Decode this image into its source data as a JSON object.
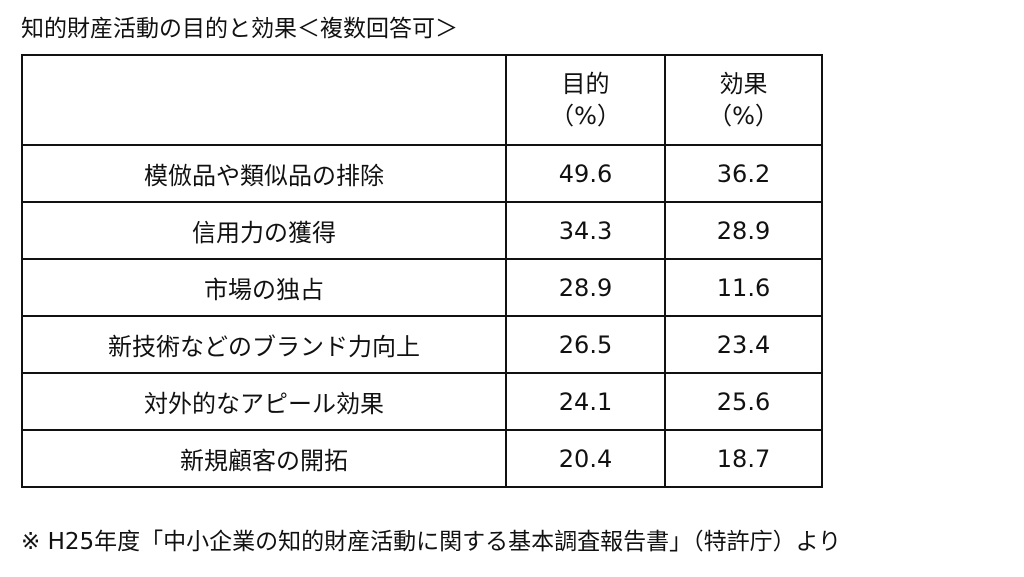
{
  "title": "知的財産活動の目的と効果＜複数回答可＞",
  "table": {
    "headers": [
      {
        "line1": "",
        "line2": ""
      },
      {
        "line1": "目的",
        "line2": "（%）"
      },
      {
        "line1": "効果",
        "line2": "（%）"
      }
    ],
    "rows": [
      {
        "label": "模倣品や類似品の排除",
        "purpose": "49.6",
        "effect": "36.2"
      },
      {
        "label": "信用力の獲得",
        "purpose": "34.3",
        "effect": "28.9"
      },
      {
        "label": "市場の独占",
        "purpose": "28.9",
        "effect": "11.6"
      },
      {
        "label": "新技術などのブランド力向上",
        "purpose": "26.5",
        "effect": "23.4"
      },
      {
        "label": "対外的なアピール効果",
        "purpose": "24.1",
        "effect": "25.6"
      },
      {
        "label": "新規顧客の開拓",
        "purpose": "20.4",
        "effect": "18.7"
      }
    ]
  },
  "footnote": "※ H25年度「中小企業の知的財産活動に関する基本調査報告書」（特許庁）より"
}
